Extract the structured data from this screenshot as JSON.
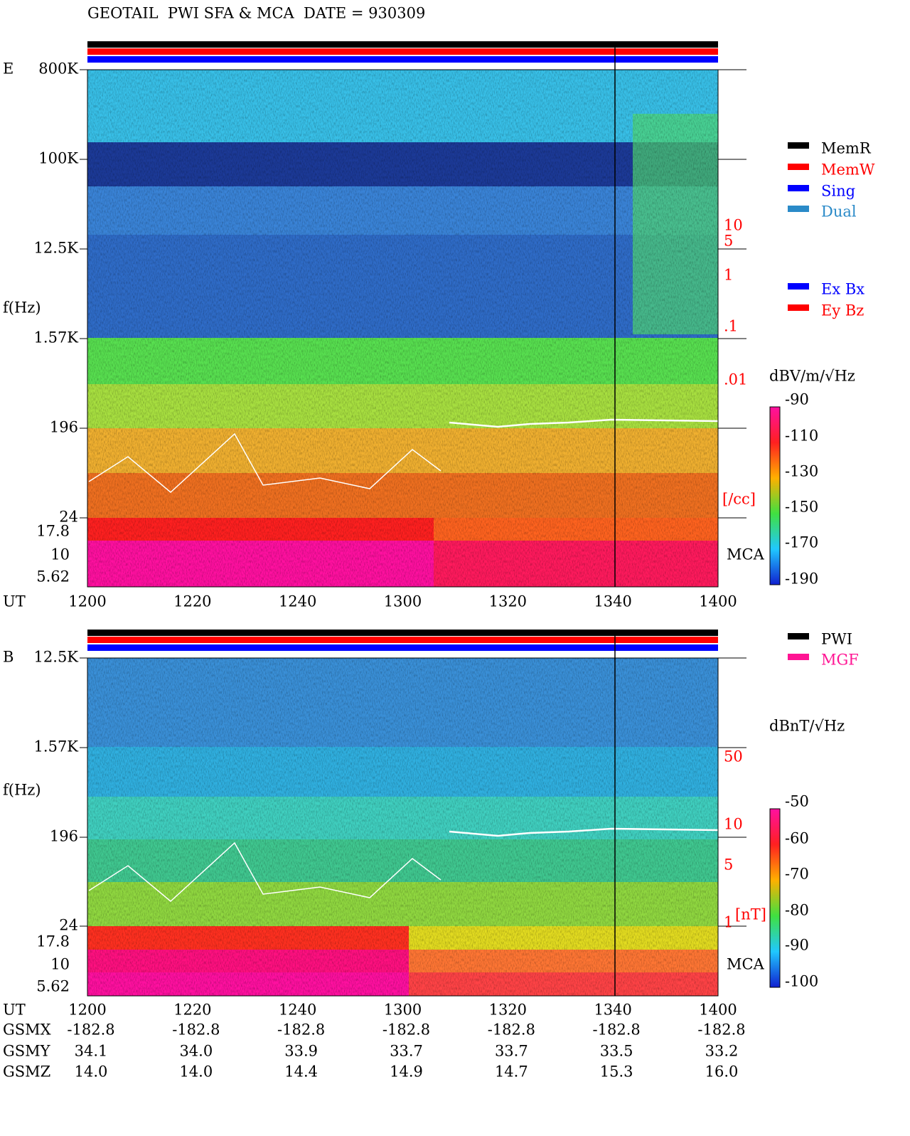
{
  "header": {
    "title": "GEOTAIL  PWI SFA & MCA  DATE = 930309"
  },
  "panels": [
    {
      "label": "E",
      "ylabel": "f(Hz)",
      "freq_ticks": [
        "800K",
        "100K",
        "12.5K",
        "1.57K",
        "196",
        "24"
      ],
      "mca_ticks": [
        "17.8",
        "10",
        "5.62"
      ],
      "time_label": "UT",
      "time_ticks": [
        "1200",
        "1220",
        "1240",
        "1300",
        "1320",
        "1340",
        "1400"
      ],
      "mca_label": "MCA",
      "colorbar_title": "dBV/m/√Hz",
      "colorbar_ticks": [
        "-90",
        "-110",
        "-130",
        "-150",
        "-170",
        "-190"
      ],
      "right_scale": [
        "10",
        "5",
        "1",
        ".1",
        ".01"
      ],
      "right_unit": "[/cc]",
      "legend": [
        {
          "label": "MemR",
          "color": "#000000"
        },
        {
          "label": "MemW",
          "color": "#ff0000"
        },
        {
          "label": "Sing",
          "color": "#0000ff"
        },
        {
          "label": "Dual",
          "color": "#2a8ac8"
        },
        {
          "label": "Ex Bx",
          "color": "#0000ff"
        },
        {
          "label": "Ey Bz",
          "color": "#ff0000"
        }
      ]
    },
    {
      "label": "B",
      "ylabel": "f(Hz)",
      "freq_ticks": [
        "12.5K",
        "1.57K",
        "196",
        "24"
      ],
      "mca_ticks": [
        "17.8",
        "10",
        "5.62"
      ],
      "time_label": "UT",
      "time_ticks": [
        "1200",
        "1220",
        "1240",
        "1300",
        "1320",
        "1340",
        "1400"
      ],
      "mca_label": "MCA",
      "colorbar_title": "dBnT/√Hz",
      "colorbar_ticks": [
        "-50",
        "-60",
        "-70",
        "-80",
        "-90",
        "-100"
      ],
      "right_scale": [
        "50",
        "10",
        "5",
        "1"
      ],
      "right_unit": "[nT]",
      "legend": [
        {
          "label": "PWI",
          "color": "#000000"
        },
        {
          "label": "MGF",
          "color": "#ff1493"
        }
      ]
    }
  ],
  "orbit": {
    "rows": [
      {
        "label": "GSMX",
        "values": [
          "-182.8",
          "-182.8",
          "-182.8",
          "-182.8",
          "-182.8",
          "-182.8",
          "-182.8"
        ]
      },
      {
        "label": "GSMY",
        "values": [
          "34.1",
          "34.0",
          "33.9",
          "33.7",
          "33.7",
          "33.5",
          "33.2"
        ]
      },
      {
        "label": "GSMZ",
        "values": [
          "14.0",
          "14.0",
          "14.4",
          "14.9",
          "14.7",
          "15.3",
          "16.0"
        ]
      }
    ]
  }
}
